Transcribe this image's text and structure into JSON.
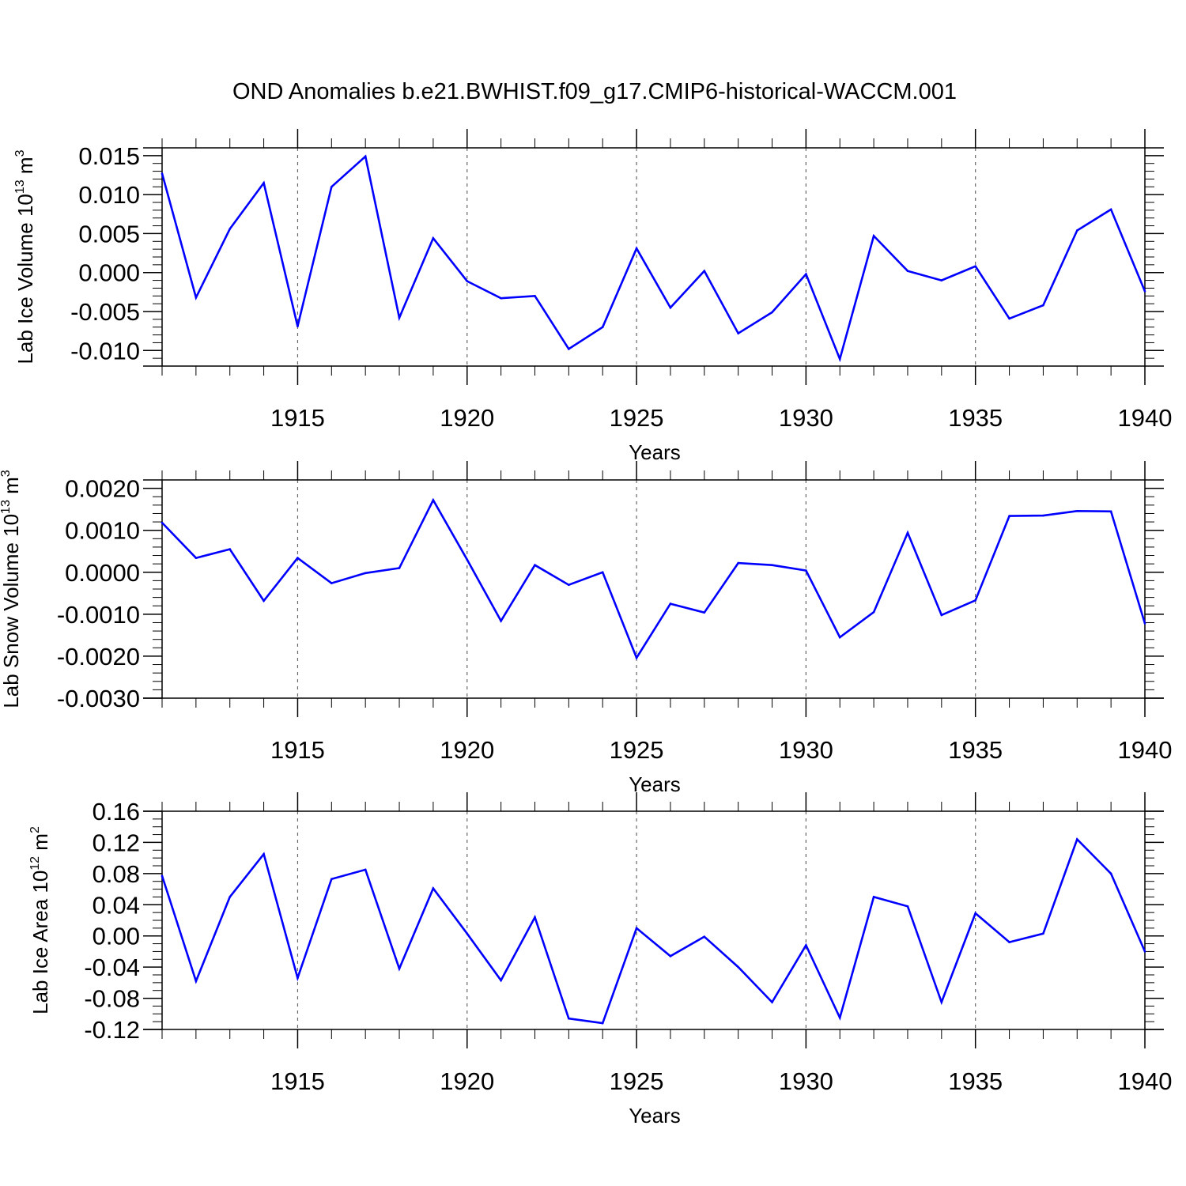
{
  "title": "OND Anomalies b.e21.BWHIST.f09_g17.CMIP6-historical-WACCM.001",
  "line_color": "#0000ff",
  "grid_color": "#666666",
  "chart_data": [
    {
      "type": "line",
      "ylabel_main": "Lab Ice Volume 10",
      "ylabel_exp": "13",
      "ylabel_unit": " m",
      "ylabel_unit_exp": "3",
      "xlabel": "Years",
      "xlim": [
        1911,
        1940
      ],
      "ylim": [
        -0.012,
        0.016
      ],
      "yticks": [
        -0.01,
        -0.005,
        0.0,
        0.005,
        0.01,
        0.015
      ],
      "ytick_labels": [
        "-0.010",
        "-0.005",
        "0.000",
        "0.005",
        "0.010",
        "0.015"
      ],
      "yminor_step": 0.001,
      "xticks": [
        1915,
        1920,
        1925,
        1930,
        1935,
        1940
      ],
      "xtick_labels": [
        "1915",
        "1920",
        "1925",
        "1930",
        "1935",
        "1940"
      ],
      "x": [
        1911,
        1912,
        1913,
        1914,
        1915,
        1916,
        1917,
        1918,
        1919,
        1920,
        1921,
        1922,
        1923,
        1924,
        1925,
        1926,
        1927,
        1928,
        1929,
        1930,
        1931,
        1932,
        1933,
        1934,
        1935,
        1936,
        1937,
        1938,
        1939,
        1940
      ],
      "values": [
        0.0127,
        -0.0032,
        0.0056,
        0.0115,
        -0.0069,
        0.011,
        0.0149,
        -0.0058,
        0.0044,
        -0.0011,
        -0.0033,
        -0.003,
        -0.0098,
        -0.007,
        0.0031,
        -0.0045,
        0.0002,
        -0.0078,
        -0.0051,
        -0.0002,
        -0.0111,
        0.0047,
        0.0002,
        -0.001,
        0.0008,
        -0.0059,
        -0.0042,
        0.0054,
        0.0081,
        -0.0024
      ]
    },
    {
      "type": "line",
      "ylabel_main": "Lab Snow Volume 10",
      "ylabel_exp": "13",
      "ylabel_unit": " m",
      "ylabel_unit_exp": "3",
      "xlabel": "Years",
      "xlim": [
        1911,
        1940
      ],
      "ylim": [
        -0.003,
        0.0022
      ],
      "yticks": [
        -0.003,
        -0.002,
        -0.001,
        0.0,
        0.001,
        0.002
      ],
      "ytick_labels": [
        "-0.0030",
        "-0.0020",
        "-0.0010",
        "0.0000",
        "0.0010",
        "0.0020"
      ],
      "yminor_step": 0.0002,
      "xticks": [
        1915,
        1920,
        1925,
        1930,
        1935,
        1940
      ],
      "xtick_labels": [
        "1915",
        "1920",
        "1925",
        "1930",
        "1935",
        "1940"
      ],
      "x": [
        1911,
        1912,
        1913,
        1914,
        1915,
        1916,
        1917,
        1918,
        1919,
        1920,
        1921,
        1922,
        1923,
        1924,
        1925,
        1926,
        1927,
        1928,
        1929,
        1930,
        1931,
        1932,
        1933,
        1934,
        1935,
        1936,
        1937,
        1938,
        1939,
        1940
      ],
      "values": [
        0.00118,
        0.00034,
        0.00055,
        -0.00068,
        0.00034,
        -0.00026,
        -2e-05,
        0.0001,
        0.00172,
        0.0003,
        -0.00116,
        0.00017,
        -0.0003,
        0.0,
        -0.00204,
        -0.00075,
        -0.00096,
        0.00022,
        0.00017,
        4e-05,
        -0.00155,
        -0.00095,
        0.00094,
        -0.00102,
        -0.00067,
        0.00134,
        0.00135,
        0.00146,
        0.00145,
        -0.00122
      ]
    },
    {
      "type": "line",
      "ylabel_main": "Lab Ice Area 10",
      "ylabel_exp": "12",
      "ylabel_unit": " m",
      "ylabel_unit_exp": "2",
      "xlabel": "Years",
      "xlim": [
        1911,
        1940
      ],
      "ylim": [
        -0.12,
        0.16
      ],
      "yticks": [
        -0.12,
        -0.08,
        -0.04,
        0.0,
        0.04,
        0.08,
        0.12,
        0.16
      ],
      "ytick_labels": [
        "-0.12",
        "-0.08",
        "-0.04",
        "0.00",
        "0.04",
        "0.08",
        "0.12",
        "0.16"
      ],
      "yminor_step": 0.01,
      "xticks": [
        1915,
        1920,
        1925,
        1930,
        1935,
        1940
      ],
      "xtick_labels": [
        "1915",
        "1920",
        "1925",
        "1930",
        "1935",
        "1940"
      ],
      "x": [
        1911,
        1912,
        1913,
        1914,
        1915,
        1916,
        1917,
        1918,
        1919,
        1920,
        1921,
        1922,
        1923,
        1924,
        1925,
        1926,
        1927,
        1928,
        1929,
        1930,
        1931,
        1932,
        1933,
        1934,
        1935,
        1936,
        1937,
        1938,
        1939,
        1940
      ],
      "values": [
        0.077,
        -0.058,
        0.05,
        0.105,
        -0.054,
        0.073,
        0.085,
        -0.042,
        0.061,
        0.003,
        -0.057,
        0.024,
        -0.106,
        -0.112,
        0.01,
        -0.026,
        -0.001,
        -0.04,
        -0.085,
        -0.012,
        -0.105,
        0.05,
        0.038,
        -0.085,
        0.029,
        -0.008,
        0.003,
        0.124,
        0.08,
        -0.02
      ]
    }
  ]
}
